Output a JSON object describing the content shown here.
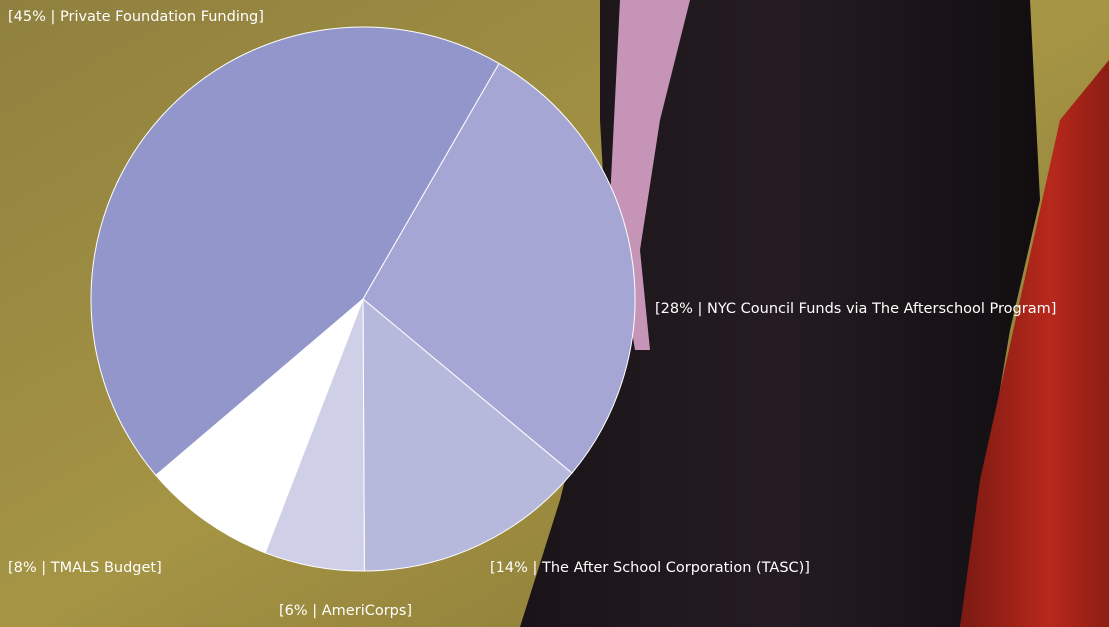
{
  "chart_data": {
    "type": "pie",
    "values": [
      28,
      14,
      6,
      8,
      45
    ],
    "value_labels": [
      "[28% | NYC Council Funds via The Afterschool Program]",
      "[14% | The After School Corporation (TASC)]",
      "[6% | AmeriCorps]",
      "[8% | TMALS Budget]",
      "[45% | Private Foundation Funding]"
    ],
    "colors": [
      "#a5a6d4",
      "#b7b9dc",
      "#cfd0e8",
      "#ffffff",
      "#9396cb"
    ]
  }
}
